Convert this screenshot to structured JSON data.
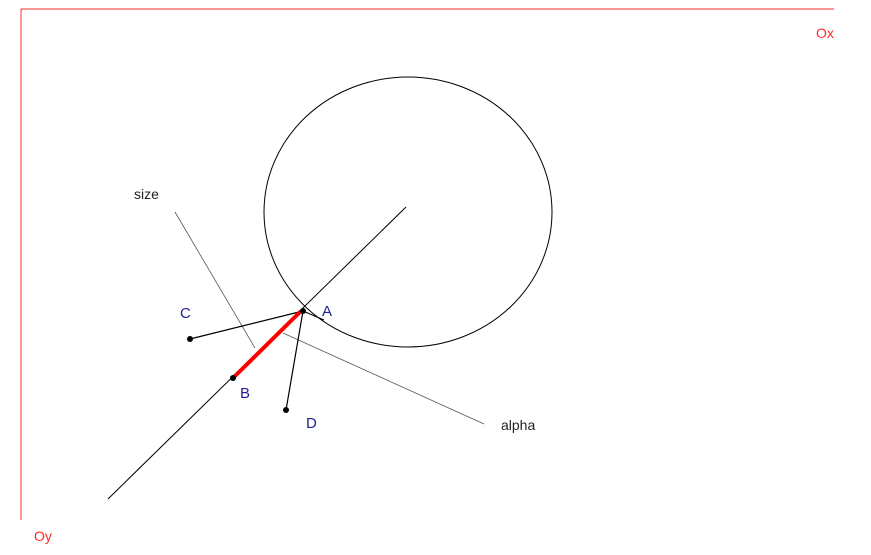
{
  "axes": {
    "x_label": "Ox",
    "y_label": "Oy",
    "color": "#ff2a2a"
  },
  "points": {
    "a": "A",
    "b": "B",
    "c": "C",
    "d": "D",
    "label_color": "#1f1f8f"
  },
  "annotations": {
    "size": "size",
    "alpha": "alpha"
  },
  "segment_ab": {
    "color": "#ff0000"
  }
}
